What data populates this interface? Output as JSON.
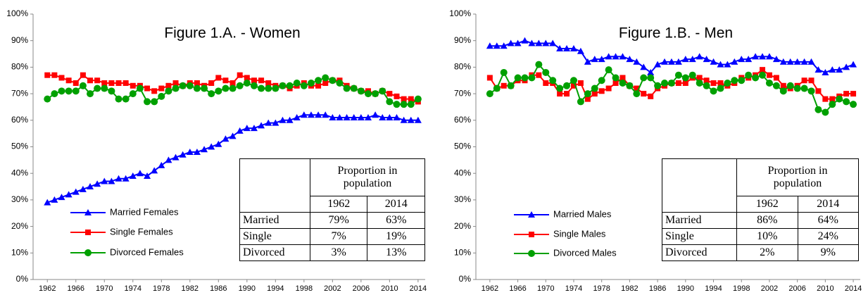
{
  "chart_data": [
    {
      "type": "line",
      "title": "Figure 1.A. - Women",
      "x": [
        1962,
        1963,
        1964,
        1965,
        1966,
        1967,
        1968,
        1969,
        1970,
        1971,
        1972,
        1973,
        1974,
        1975,
        1976,
        1977,
        1978,
        1979,
        1980,
        1981,
        1982,
        1983,
        1984,
        1985,
        1986,
        1987,
        1988,
        1989,
        1990,
        1991,
        1992,
        1993,
        1994,
        1995,
        1996,
        1997,
        1998,
        1999,
        2000,
        2001,
        2002,
        2003,
        2004,
        2005,
        2006,
        2007,
        2008,
        2009,
        2010,
        2011,
        2012,
        2013,
        2014
      ],
      "xlim": [
        1960,
        2015
      ],
      "xticks": [
        1962,
        1966,
        1970,
        1974,
        1978,
        1982,
        1986,
        1990,
        1994,
        1998,
        2002,
        2006,
        2010,
        2014
      ],
      "ylim": [
        0,
        100
      ],
      "yticks": [
        {
          "value": 0,
          "label": "0%"
        },
        {
          "value": 10,
          "label": "10%"
        },
        {
          "value": 20,
          "label": "20%"
        },
        {
          "value": 30,
          "label": "30%"
        },
        {
          "value": 40,
          "label": "40%"
        },
        {
          "value": 50,
          "label": "50%"
        },
        {
          "value": 60,
          "label": "60%"
        },
        {
          "value": 70,
          "label": "70%"
        },
        {
          "value": 80,
          "label": "80%"
        },
        {
          "value": 90,
          "label": "90%"
        },
        {
          "value": 100,
          "label": "100%"
        }
      ],
      "grid": false,
      "legend": "lower left",
      "series": [
        {
          "name": "Married Females",
          "color": "#0000ff",
          "marker": "triangle",
          "values": [
            29,
            30,
            31,
            32,
            33,
            34,
            35,
            36,
            37,
            37,
            38,
            38,
            39,
            40,
            39,
            41,
            43,
            45,
            46,
            47,
            48,
            48,
            49,
            50,
            51,
            53,
            54,
            56,
            57,
            57,
            58,
            59,
            59,
            60,
            60,
            61,
            62,
            62,
            62,
            62,
            61,
            61,
            61,
            61,
            61,
            61,
            62,
            61,
            61,
            61,
            60,
            60,
            60
          ]
        },
        {
          "name": "Single Females",
          "color": "#ff0000",
          "marker": "square",
          "values": [
            77,
            77,
            76,
            75,
            74,
            77,
            75,
            75,
            74,
            74,
            74,
            74,
            73,
            73,
            72,
            71,
            72,
            73,
            74,
            73,
            74,
            74,
            73,
            74,
            76,
            75,
            74,
            77,
            76,
            75,
            75,
            74,
            73,
            73,
            72,
            73,
            74,
            73,
            73,
            74,
            75,
            75,
            73,
            72,
            71,
            71,
            70,
            71,
            70,
            69,
            68,
            68,
            67
          ]
        },
        {
          "name": "Divorced Females",
          "color": "#00a000",
          "marker": "circle",
          "values": [
            68,
            70,
            71,
            71,
            71,
            73,
            70,
            72,
            72,
            71,
            68,
            68,
            70,
            72,
            67,
            67,
            69,
            71,
            72,
            73,
            73,
            72,
            72,
            70,
            71,
            72,
            72,
            73,
            74,
            73,
            72,
            72,
            72,
            73,
            73,
            74,
            73,
            74,
            75,
            76,
            75,
            74,
            72,
            72,
            71,
            70,
            70,
            71,
            67,
            66,
            66,
            66,
            68
          ]
        }
      ],
      "table": {
        "header": "Proportion in population",
        "columns": [
          "1962",
          "2014"
        ],
        "rows": [
          [
            "Married",
            "79%",
            "63%"
          ],
          [
            "Single",
            "7%",
            "19%"
          ],
          [
            "Divorced",
            "3%",
            "13%"
          ]
        ]
      }
    },
    {
      "type": "line",
      "title": "Figure 1.B. - Men",
      "x": [
        1962,
        1963,
        1964,
        1965,
        1966,
        1967,
        1968,
        1969,
        1970,
        1971,
        1972,
        1973,
        1974,
        1975,
        1976,
        1977,
        1978,
        1979,
        1980,
        1981,
        1982,
        1983,
        1984,
        1985,
        1986,
        1987,
        1988,
        1989,
        1990,
        1991,
        1992,
        1993,
        1994,
        1995,
        1996,
        1997,
        1998,
        1999,
        2000,
        2001,
        2002,
        2003,
        2004,
        2005,
        2006,
        2007,
        2008,
        2009,
        2010,
        2011,
        2012,
        2013,
        2014
      ],
      "xlim": [
        1960,
        2015
      ],
      "xticks": [
        1962,
        1966,
        1970,
        1974,
        1978,
        1982,
        1986,
        1990,
        1994,
        1998,
        2002,
        2006,
        2010,
        2014
      ],
      "ylim": [
        0,
        100
      ],
      "yticks": [
        {
          "value": 0,
          "label": "0%"
        },
        {
          "value": 10,
          "label": "10%"
        },
        {
          "value": 20,
          "label": "20%"
        },
        {
          "value": 30,
          "label": "30%"
        },
        {
          "value": 40,
          "label": "40%"
        },
        {
          "value": 50,
          "label": "50%"
        },
        {
          "value": 60,
          "label": "60%"
        },
        {
          "value": 70,
          "label": "70%"
        },
        {
          "value": 80,
          "label": "80%"
        },
        {
          "value": 90,
          "label": "90%"
        },
        {
          "value": 100,
          "label": "100%"
        }
      ],
      "grid": false,
      "legend": "lower left",
      "series": [
        {
          "name": "Married Males",
          "color": "#0000ff",
          "marker": "triangle",
          "values": [
            88,
            88,
            88,
            89,
            89,
            90,
            89,
            89,
            89,
            89,
            87,
            87,
            87,
            86,
            82,
            83,
            83,
            84,
            84,
            84,
            83,
            82,
            80,
            78,
            81,
            82,
            82,
            82,
            83,
            83,
            84,
            83,
            82,
            81,
            81,
            82,
            83,
            83,
            84,
            84,
            84,
            83,
            82,
            82,
            82,
            82,
            82,
            79,
            78,
            79,
            79,
            80,
            81
          ]
        },
        {
          "name": "Single Males",
          "color": "#ff0000",
          "marker": "square",
          "values": [
            76,
            72,
            73,
            73,
            75,
            75,
            77,
            77,
            74,
            74,
            70,
            70,
            73,
            74,
            68,
            70,
            71,
            72,
            74,
            76,
            73,
            72,
            70,
            69,
            72,
            73,
            74,
            74,
            74,
            76,
            76,
            75,
            74,
            74,
            73,
            74,
            76,
            76,
            77,
            79,
            77,
            76,
            73,
            72,
            73,
            75,
            75,
            71,
            68,
            68,
            69,
            70,
            70
          ]
        },
        {
          "name": "Divorced Males",
          "color": "#00a000",
          "marker": "circle",
          "values": [
            70,
            72,
            78,
            73,
            76,
            76,
            76,
            81,
            78,
            75,
            72,
            73,
            75,
            67,
            70,
            72,
            75,
            79,
            76,
            74,
            73,
            70,
            76,
            76,
            73,
            74,
            74,
            77,
            76,
            77,
            74,
            73,
            71,
            72,
            74,
            75,
            75,
            77,
            76,
            77,
            74,
            73,
            71,
            73,
            72,
            72,
            71,
            64,
            63,
            66,
            68,
            67,
            66
          ]
        }
      ],
      "table": {
        "header": "Proportion in population",
        "columns": [
          "1962",
          "2014"
        ],
        "rows": [
          [
            "Married",
            "86%",
            "64%"
          ],
          [
            "Single",
            "10%",
            "24%"
          ],
          [
            "Divorced",
            "2%",
            "9%"
          ]
        ]
      }
    }
  ]
}
